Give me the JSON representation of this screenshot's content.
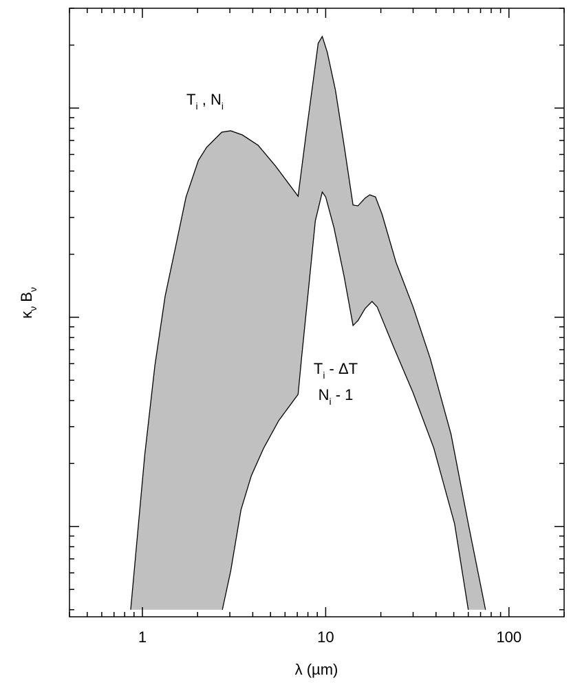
{
  "chart_data": {
    "type": "band",
    "xlabel": [
      {
        "text": "λ (µm)"
      }
    ],
    "ylabel": [
      {
        "text": "κ"
      },
      {
        "sub": "ν"
      },
      {
        "text": " B"
      },
      {
        "sub": "ν"
      }
    ],
    "xscale": "log",
    "yscale": "log",
    "xlim": [
      0.4,
      200
    ],
    "ylim": [
      0.0037,
      3
    ],
    "xticks": [
      1,
      10,
      100
    ],
    "xminorticks": [
      0.4,
      0.5,
      0.6,
      0.7,
      0.8,
      0.9,
      2,
      3,
      4,
      5,
      6,
      7,
      8,
      9,
      20,
      30,
      40,
      50,
      60,
      70,
      80,
      90,
      200
    ],
    "yticks": [
      0.01,
      0.1,
      1
    ],
    "ytick_labels": false,
    "yminorticks": [
      0.004,
      0.005,
      0.006,
      0.007,
      0.008,
      0.009,
      0.02,
      0.03,
      0.04,
      0.05,
      0.06,
      0.07,
      0.08,
      0.09,
      0.2,
      0.3,
      0.4,
      0.5,
      0.6,
      0.7,
      0.8,
      0.9,
      2,
      3
    ],
    "mirror_ticks": true,
    "fill_color": "#c0c0c0",
    "line_color": "#000000",
    "series": [
      {
        "x": [
          0.863,
          1.03,
          1.17,
          1.33,
          1.51,
          1.73,
          2.02,
          2.24,
          2.71,
          3.03,
          3.51,
          4.28,
          5.32,
          7.07,
          7.85,
          8.56,
          9.1,
          9.58,
          10.2,
          11.3,
          12.6,
          14.1,
          15.0,
          16.4,
          17.4,
          18.7,
          20.3,
          24.2,
          30.0,
          37.2,
          48.3,
          60.0,
          74.5
        ],
        "values": [
          0.004,
          0.022,
          0.0589,
          0.126,
          0.213,
          0.376,
          0.562,
          0.649,
          0.767,
          0.779,
          0.744,
          0.664,
          0.529,
          0.379,
          0.773,
          1.36,
          2.04,
          2.2,
          1.85,
          1.22,
          0.664,
          0.344,
          0.341,
          0.371,
          0.385,
          0.376,
          0.311,
          0.183,
          0.112,
          0.0635,
          0.0276,
          0.0103,
          0.004
        ]
      },
      {
        "x": [
          2.73,
          3.03,
          3.45,
          3.93,
          4.59,
          5.55,
          7.07,
          7.38,
          8.05,
          8.78,
          9.58,
          10.0,
          11.1,
          12.6,
          14.1,
          15.0,
          16.4,
          17.9,
          19.1,
          23.2,
          30.0,
          38.9,
          50.5,
          60.0
        ],
        "values": [
          0.004,
          0.0061,
          0.012,
          0.0175,
          0.0237,
          0.0321,
          0.0428,
          0.0635,
          0.135,
          0.289,
          0.397,
          0.376,
          0.268,
          0.157,
          0.0913,
          0.0964,
          0.11,
          0.119,
          0.112,
          0.0739,
          0.0435,
          0.0237,
          0.0103,
          0.004
        ]
      }
    ],
    "annotations": [
      {
        "lines": [
          [
            {
              "text": "T"
            },
            {
              "sub": "i"
            },
            {
              "text": " , N"
            },
            {
              "sub": "i"
            }
          ]
        ]
      },
      {
        "lines": [
          [
            {
              "text": "T"
            },
            {
              "sub": "i"
            },
            {
              "text": " - ΔT"
            }
          ],
          [
            {
              "text": "N"
            },
            {
              "sub": "i"
            },
            {
              "text": " - 1"
            }
          ]
        ]
      }
    ]
  }
}
